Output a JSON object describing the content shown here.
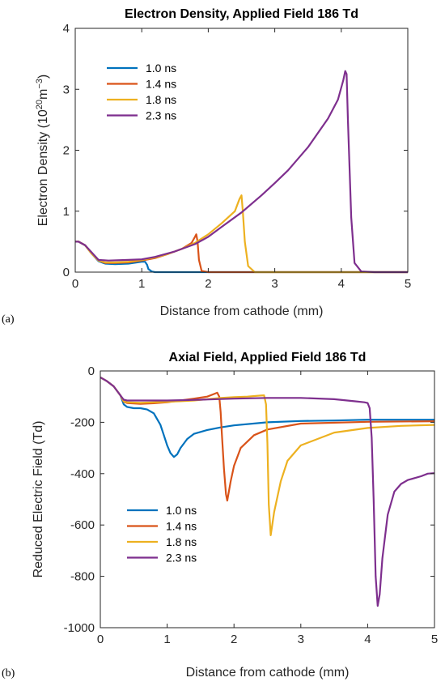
{
  "colors": {
    "1.0 ns": "#0072BD",
    "1.4 ns": "#D95319",
    "1.8 ns": "#EDB120",
    "2.3 ns": "#7E2F8E",
    "axis": "#262626"
  },
  "chart_data": [
    {
      "panel_label": "(a)",
      "type": "line",
      "title": "Electron Density, Applied Field 186 Td",
      "xlabel": "Distance from cathode (mm)",
      "ylabel": "Electron Density (10",
      "ylabel_sup1": "20",
      "ylabel_mid": "m",
      "ylabel_sup2": "−3",
      "ylabel_end": ")",
      "xlim": [
        0,
        5
      ],
      "ylim": [
        0,
        4
      ],
      "xticks": [
        0,
        1,
        2,
        3,
        4,
        5
      ],
      "yticks": [
        0,
        1,
        2,
        3,
        4
      ],
      "legend_position": "upper-left",
      "series": [
        {
          "name": "1.0 ns",
          "x": [
            0,
            0.05,
            0.15,
            0.25,
            0.35,
            0.45,
            0.6,
            0.8,
            1.0,
            1.05,
            1.08,
            1.1,
            1.15,
            1.2,
            2,
            3,
            4,
            5
          ],
          "y": [
            0.5,
            0.5,
            0.44,
            0.3,
            0.18,
            0.14,
            0.13,
            0.14,
            0.17,
            0.17,
            0.12,
            0.05,
            0.01,
            0,
            0,
            0,
            0,
            0
          ]
        },
        {
          "name": "1.4 ns",
          "x": [
            0,
            0.05,
            0.15,
            0.25,
            0.35,
            0.45,
            0.6,
            0.8,
            1.0,
            1.2,
            1.4,
            1.6,
            1.75,
            1.8,
            1.82,
            1.84,
            1.86,
            1.9,
            2.0,
            3,
            4,
            5
          ],
          "y": [
            0.5,
            0.5,
            0.44,
            0.3,
            0.19,
            0.15,
            0.15,
            0.16,
            0.19,
            0.23,
            0.3,
            0.38,
            0.48,
            0.58,
            0.62,
            0.5,
            0.2,
            0.02,
            0,
            0,
            0,
            0
          ]
        },
        {
          "name": "1.8 ns",
          "x": [
            0,
            0.05,
            0.15,
            0.25,
            0.35,
            0.45,
            0.6,
            0.8,
            1.0,
            1.2,
            1.4,
            1.6,
            1.8,
            2.0,
            2.2,
            2.4,
            2.47,
            2.5,
            2.52,
            2.55,
            2.6,
            2.7,
            3,
            4,
            5
          ],
          "y": [
            0.5,
            0.5,
            0.44,
            0.3,
            0.19,
            0.16,
            0.16,
            0.17,
            0.2,
            0.24,
            0.3,
            0.38,
            0.48,
            0.62,
            0.8,
            1.0,
            1.2,
            1.26,
            1.0,
            0.5,
            0.1,
            0,
            0,
            0,
            0
          ]
        },
        {
          "name": "2.3 ns",
          "x": [
            0,
            0.05,
            0.15,
            0.25,
            0.35,
            0.5,
            0.8,
            1.0,
            1.2,
            1.5,
            1.8,
            2.0,
            2.2,
            2.5,
            2.8,
            3.0,
            3.2,
            3.5,
            3.8,
            3.95,
            4.03,
            4.06,
            4.08,
            4.1,
            4.15,
            4.2,
            4.3,
            4.5,
            5
          ],
          "y": [
            0.5,
            0.5,
            0.44,
            0.32,
            0.2,
            0.19,
            0.2,
            0.21,
            0.25,
            0.34,
            0.46,
            0.58,
            0.74,
            0.98,
            1.26,
            1.46,
            1.67,
            2.05,
            2.52,
            2.83,
            3.15,
            3.3,
            3.25,
            2.5,
            0.9,
            0.15,
            0.01,
            0,
            0
          ]
        }
      ]
    },
    {
      "panel_label": "(b)",
      "type": "line",
      "title": "Axial Field, Applied Field 186 Td",
      "xlabel": "Distance from cathode (mm)",
      "ylabel": "Reduced Electric Field (Td)",
      "xlim": [
        0,
        5
      ],
      "ylim": [
        -1000,
        0
      ],
      "xticks": [
        0,
        1,
        2,
        3,
        4,
        5
      ],
      "yticks": [
        0,
        -200,
        -400,
        -600,
        -800,
        -1000
      ],
      "legend_position": "lower-left",
      "series": [
        {
          "name": "1.0 ns",
          "x": [
            0,
            0.1,
            0.2,
            0.3,
            0.35,
            0.4,
            0.5,
            0.6,
            0.7,
            0.8,
            0.9,
            0.95,
            1.0,
            1.05,
            1.1,
            1.15,
            1.2,
            1.3,
            1.4,
            1.6,
            1.8,
            2.0,
            2.5,
            3.0,
            3.5,
            4.0,
            5.0
          ],
          "y": [
            -25,
            -40,
            -60,
            -95,
            -130,
            -140,
            -145,
            -145,
            -150,
            -165,
            -210,
            -250,
            -290,
            -320,
            -335,
            -325,
            -300,
            -265,
            -245,
            -230,
            -220,
            -212,
            -200,
            -195,
            -193,
            -190,
            -190
          ]
        },
        {
          "name": "1.4 ns",
          "x": [
            0,
            0.1,
            0.2,
            0.3,
            0.35,
            0.4,
            0.6,
            0.8,
            1.0,
            1.2,
            1.4,
            1.6,
            1.7,
            1.75,
            1.78,
            1.8,
            1.82,
            1.85,
            1.88,
            1.9,
            1.95,
            2.0,
            2.1,
            2.3,
            2.5,
            3.0,
            4.0,
            5.0
          ],
          "y": [
            -25,
            -40,
            -60,
            -95,
            -120,
            -125,
            -128,
            -126,
            -122,
            -115,
            -108,
            -100,
            -90,
            -85,
            -100,
            -160,
            -250,
            -380,
            -480,
            -505,
            -430,
            -370,
            -300,
            -250,
            -228,
            -205,
            -198,
            -196
          ]
        },
        {
          "name": "1.8 ns",
          "x": [
            0,
            0.1,
            0.2,
            0.3,
            0.35,
            0.4,
            0.6,
            0.8,
            1.0,
            1.2,
            1.4,
            1.6,
            1.8,
            2.0,
            2.2,
            2.4,
            2.45,
            2.48,
            2.5,
            2.52,
            2.55,
            2.6,
            2.7,
            2.8,
            3.0,
            3.5,
            4.0,
            4.5,
            5.0
          ],
          "y": [
            -25,
            -40,
            -60,
            -95,
            -118,
            -122,
            -124,
            -122,
            -120,
            -118,
            -115,
            -110,
            -105,
            -102,
            -100,
            -96,
            -95,
            -130,
            -280,
            -520,
            -640,
            -550,
            -430,
            -350,
            -290,
            -240,
            -222,
            -214,
            -210
          ]
        },
        {
          "name": "2.3 ns",
          "x": [
            0,
            0.1,
            0.2,
            0.3,
            0.35,
            0.4,
            0.6,
            0.8,
            1.0,
            1.2,
            1.5,
            2.0,
            2.5,
            3.0,
            3.5,
            3.8,
            3.95,
            4.0,
            4.03,
            4.06,
            4.09,
            4.12,
            4.15,
            4.18,
            4.22,
            4.3,
            4.4,
            4.5,
            4.6,
            4.8,
            4.9,
            5.0
          ],
          "y": [
            -25,
            -40,
            -60,
            -95,
            -112,
            -115,
            -115,
            -115,
            -115,
            -114,
            -112,
            -108,
            -105,
            -105,
            -110,
            -118,
            -122,
            -125,
            -145,
            -260,
            -500,
            -800,
            -915,
            -870,
            -730,
            -560,
            -470,
            -440,
            -425,
            -410,
            -400,
            -398
          ]
        }
      ]
    }
  ]
}
